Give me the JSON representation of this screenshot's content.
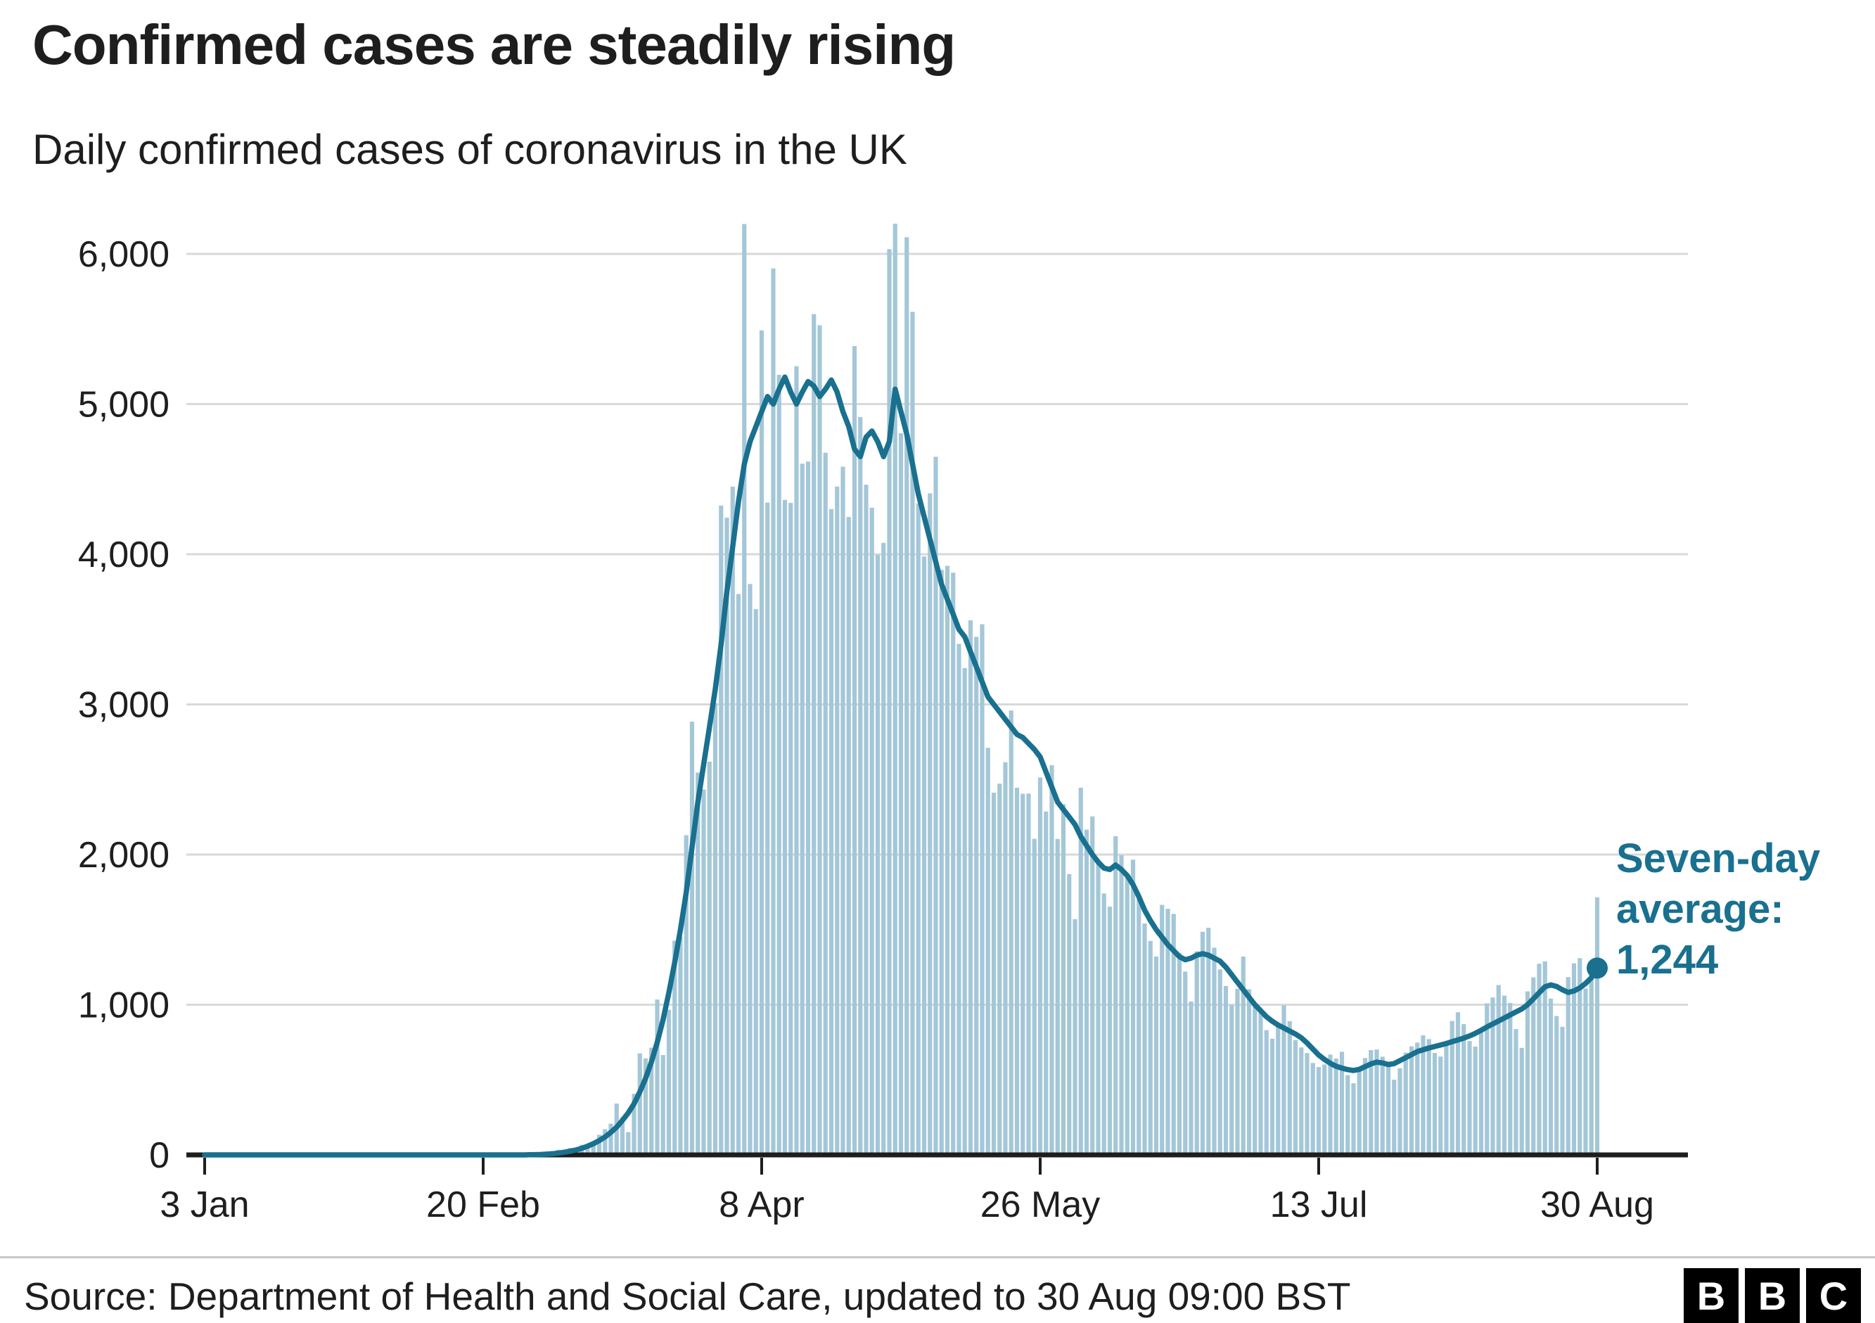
{
  "header": {
    "title": "Confirmed cases are steadily rising",
    "subtitle": "Daily confirmed cases of coronavirus in the UK"
  },
  "annotation": {
    "label": "Seven-day average:",
    "value": "1,244",
    "color": "#19708f"
  },
  "footer": {
    "source": "Source: Department of Health and Social Care, updated to 30 Aug 09:00 BST",
    "logo_letters": [
      "B",
      "B",
      "C"
    ]
  },
  "chart_data": {
    "type": "bar",
    "title": "Confirmed cases are steadily rising",
    "subtitle": "Daily confirmed cases of coronavirus in the UK",
    "xlabel": "",
    "ylabel": "",
    "ylim": [
      0,
      6200
    ],
    "grid": "horizontal",
    "legend": "none",
    "bar_color": "#a4c7d8",
    "line_color": "#19708f",
    "axis_color": "#1e1e1e",
    "grid_color": "#d9d9d9",
    "last_average": 1244,
    "x_ticks": [
      {
        "day": 0,
        "label": "3 Jan"
      },
      {
        "day": 48,
        "label": "20 Feb"
      },
      {
        "day": 96,
        "label": "8 Apr"
      },
      {
        "day": 144,
        "label": "26 May"
      },
      {
        "day": 192,
        "label": "13 Jul"
      },
      {
        "day": 240,
        "label": "30 Aug"
      }
    ],
    "y_ticks": [
      {
        "v": 0,
        "label": "0"
      },
      {
        "v": 1000,
        "label": "1,000"
      },
      {
        "v": 2000,
        "label": "2,000"
      },
      {
        "v": 3000,
        "label": "3,000"
      },
      {
        "v": 4000,
        "label": "4,000"
      },
      {
        "v": 5000,
        "label": "5,000"
      },
      {
        "v": 6000,
        "label": "6,000"
      }
    ],
    "series": [
      {
        "name": "Daily confirmed cases",
        "kind": "bar",
        "values": [
          0,
          0,
          0,
          0,
          0,
          0,
          0,
          0,
          0,
          0,
          0,
          0,
          0,
          0,
          0,
          0,
          0,
          0,
          0,
          0,
          0,
          0,
          0,
          0,
          0,
          0,
          0,
          2,
          2,
          0,
          0,
          1,
          0,
          0,
          2,
          0,
          0,
          1,
          3,
          1,
          0,
          1,
          0,
          0,
          0,
          0,
          0,
          0,
          0,
          0,
          0,
          0,
          4,
          0,
          3,
          2,
          6,
          13,
          3,
          12,
          11,
          34,
          29,
          46,
          45,
          67,
          52,
          83,
          134,
          171,
          208,
          342,
          251,
          152,
          407,
          676,
          643,
          714,
          1035,
          665,
          967,
          1427,
          1452,
          2129,
          2885,
          2546,
          2433,
          2619,
          3009,
          4324,
          4244,
          4450,
          3735,
          6199,
          3802,
          3634,
          5491,
          4344,
          5903,
          5195,
          4362,
          4342,
          5252,
          4603,
          4617,
          5599,
          5525,
          4676,
          4301,
          4451,
          4583,
          4248,
          5386,
          4913,
          4463,
          4310,
          3996,
          4076,
          6032,
          6201,
          4806,
          6111,
          5614,
          4339,
          3985,
          4406,
          4649,
          3896,
          3923,
          3877,
          3403,
          3242,
          3560,
          3450,
          3534,
          2711,
          2412,
          2472,
          2615,
          2959,
          2445,
          2405,
          2406,
          2105,
          2513,
          2287,
          2595,
          2104,
          2336,
          1870,
          1570,
          2445,
          2166,
          2254,
          1965,
          1741,
          1653,
          2122,
          1996,
          1852,
          1966,
          1712,
          1541,
          1425,
          1321,
          1665,
          1639,
          1605,
          1346,
          1221,
          1021,
          1356,
          1486,
          1512,
          1380,
          1235,
          1125,
          998,
          1106,
          1321,
          1103,
          1008,
          952,
          831,
          774,
          862,
          996,
          891,
          765,
          716,
          678,
          612,
          585,
          602,
          668,
          642,
          687,
          531,
          477,
          580,
          645,
          698,
          702,
          654,
          589,
          501,
          577,
          681,
          723,
          748,
          796,
          771,
          679,
          655,
          741,
          892,
          950,
          871,
          758,
          721,
          816,
          1009,
          1048,
          1131,
          1061,
          1012,
          838,
          713,
          1089,
          1182,
          1273,
          1288,
          1041,
          925,
          853,
          1184,
          1276,
          1310,
          1108,
          1276,
          1715
        ]
      },
      {
        "name": "Seven-day average",
        "kind": "line",
        "values": [
          0,
          0,
          0,
          0,
          0,
          0,
          0,
          0,
          0,
          0,
          0,
          0,
          0,
          0,
          0,
          0,
          0,
          0,
          0,
          0,
          0,
          0,
          0,
          0,
          0,
          0,
          0,
          0,
          0,
          0,
          0,
          0,
          0,
          0,
          0,
          0,
          0,
          0,
          0,
          0,
          0,
          0,
          0,
          0,
          0,
          0,
          0,
          0,
          0,
          0,
          0,
          0,
          0,
          0,
          0,
          0,
          1,
          2,
          3,
          5,
          8,
          12,
          18,
          25,
          33,
          44,
          58,
          75,
          95,
          120,
          150,
          185,
          230,
          280,
          340,
          420,
          510,
          620,
          750,
          900,
          1080,
          1280,
          1500,
          1750,
          2050,
          2350,
          2600,
          2850,
          3100,
          3400,
          3750,
          4050,
          4350,
          4600,
          4750,
          4850,
          4950,
          5050,
          5000,
          5100,
          5180,
          5080,
          5000,
          5080,
          5150,
          5120,
          5050,
          5100,
          5160,
          5080,
          4950,
          4850,
          4700,
          4650,
          4780,
          4820,
          4750,
          4650,
          4750,
          5100,
          4950,
          4800,
          4600,
          4400,
          4250,
          4100,
          3950,
          3800,
          3700,
          3600,
          3500,
          3450,
          3350,
          3250,
          3150,
          3050,
          3000,
          2950,
          2900,
          2850,
          2800,
          2780,
          2740,
          2700,
          2650,
          2550,
          2450,
          2350,
          2300,
          2250,
          2200,
          2120,
          2060,
          2000,
          1950,
          1910,
          1900,
          1930,
          1900,
          1860,
          1800,
          1720,
          1630,
          1560,
          1500,
          1450,
          1400,
          1360,
          1320,
          1300,
          1310,
          1330,
          1340,
          1330,
          1310,
          1290,
          1250,
          1200,
          1150,
          1100,
          1050,
          1000,
          960,
          920,
          890,
          865,
          845,
          825,
          805,
          780,
          745,
          705,
          665,
          635,
          610,
          590,
          578,
          568,
          562,
          570,
          588,
          606,
          618,
          612,
          602,
          608,
          628,
          648,
          668,
          688,
          700,
          712,
          722,
          732,
          742,
          754,
          766,
          778,
          792,
          810,
          830,
          852,
          872,
          892,
          912,
          932,
          952,
          972,
          1000,
          1040,
          1080,
          1120,
          1132,
          1122,
          1100,
          1082,
          1092,
          1112,
          1142,
          1180,
          1244
        ]
      }
    ]
  }
}
